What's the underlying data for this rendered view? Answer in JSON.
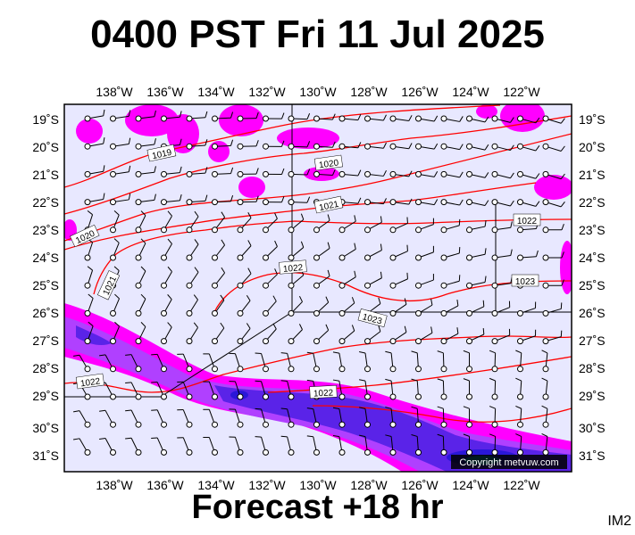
{
  "header": {
    "title": "0400 PST Fri 11 Jul 2025"
  },
  "footer": {
    "forecast": "Forecast +18 hr",
    "product": "IM2"
  },
  "map": {
    "copyright": "Copyright metvuw.com",
    "lon_labels": [
      "138˚W",
      "136˚W",
      "134˚W",
      "132˚W",
      "130˚W",
      "128˚W",
      "126˚W",
      "124˚W",
      "122˚W"
    ],
    "lat_labels": [
      "19˚S",
      "20˚S",
      "21˚S",
      "22˚S",
      "23˚S",
      "24˚S",
      "25˚S",
      "26˚S",
      "27˚S",
      "28˚S",
      "29˚S",
      "30˚S",
      "31˚S"
    ],
    "isobar_labels": [
      "1019",
      "1020",
      "1021",
      "1020",
      "1022",
      "1021",
      "1022",
      "1023",
      "1023",
      "1022",
      "1022"
    ],
    "colors": {
      "ocean": "#e8e8ff",
      "rain_light": "#ff00ff",
      "rain_mid": "#7a33ff",
      "rain_heavy": "#2a17d8",
      "rain_core": "#00b4d8",
      "isobar": "#ff0000"
    }
  }
}
